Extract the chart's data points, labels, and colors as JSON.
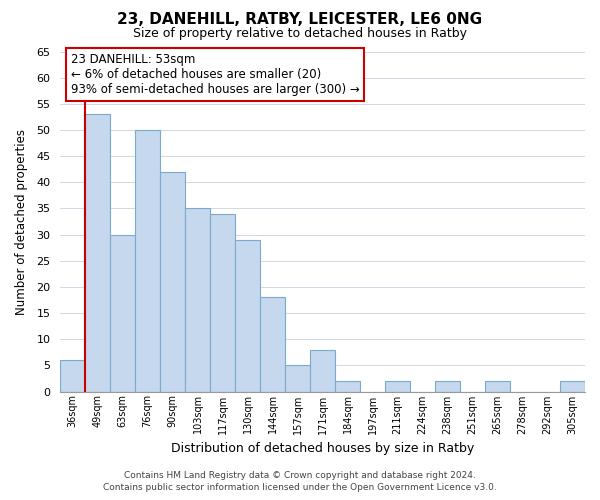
{
  "title": "23, DANEHILL, RATBY, LEICESTER, LE6 0NG",
  "subtitle": "Size of property relative to detached houses in Ratby",
  "xlabel": "Distribution of detached houses by size in Ratby",
  "ylabel": "Number of detached properties",
  "categories": [
    "36sqm",
    "49sqm",
    "63sqm",
    "76sqm",
    "90sqm",
    "103sqm",
    "117sqm",
    "130sqm",
    "144sqm",
    "157sqm",
    "171sqm",
    "184sqm",
    "197sqm",
    "211sqm",
    "224sqm",
    "238sqm",
    "251sqm",
    "265sqm",
    "278sqm",
    "292sqm",
    "305sqm"
  ],
  "values": [
    6,
    53,
    30,
    50,
    42,
    35,
    34,
    29,
    18,
    5,
    8,
    2,
    0,
    2,
    0,
    2,
    0,
    2,
    0,
    0,
    2
  ],
  "bar_color": "#c5d8ed",
  "bar_edge_color": "#7aabcf",
  "highlight_bar_index": 1,
  "highlight_line_color": "#cc0000",
  "ylim": [
    0,
    65
  ],
  "yticks": [
    0,
    5,
    10,
    15,
    20,
    25,
    30,
    35,
    40,
    45,
    50,
    55,
    60,
    65
  ],
  "annotation_title": "23 DANEHILL: 53sqm",
  "annotation_line1": "← 6% of detached houses are smaller (20)",
  "annotation_line2": "93% of semi-detached houses are larger (300) →",
  "annotation_box_color": "#ffffff",
  "annotation_box_edge": "#cc0000",
  "footer_line1": "Contains HM Land Registry data © Crown copyright and database right 2024.",
  "footer_line2": "Contains public sector information licensed under the Open Government Licence v3.0.",
  "background_color": "#ffffff",
  "grid_color": "#d0d8e4"
}
